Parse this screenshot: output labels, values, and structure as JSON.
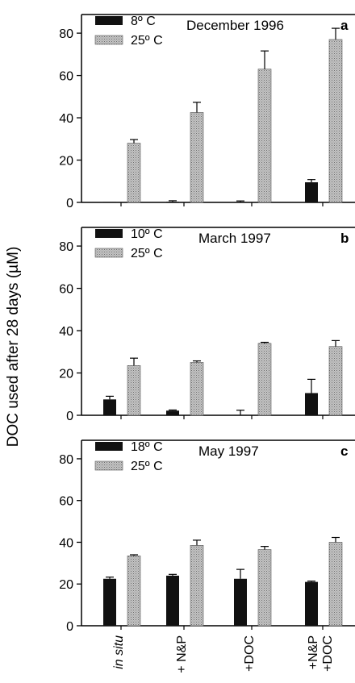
{
  "ylabel": "DOC used after 28 days (µM)",
  "categories": [
    "in situ",
    "+ N&P",
    "+DOC",
    "+N&P\n+DOC"
  ],
  "colors": {
    "low": "#111111",
    "high": "#b5b5b5",
    "high_stripe": "#6e6e6e",
    "axis": "#000000"
  },
  "chart_data": [
    {
      "type": "bar",
      "title": "December 1996",
      "panel_letter": "a",
      "categories": [
        "in situ",
        "+ N&P",
        "+DOC",
        "+N&P +DOC"
      ],
      "ylim": [
        0,
        85
      ],
      "yticks": [
        0,
        20,
        40,
        60,
        80
      ],
      "series": [
        {
          "name": "8º C",
          "values": [
            0.2,
            0.3,
            0.2,
            9.5
          ],
          "errors": [
            0,
            0.5,
            0.5,
            1.3
          ]
        },
        {
          "name": "25º C",
          "values": [
            28,
            42.5,
            63,
            77
          ],
          "errors": [
            1.7,
            4.8,
            8.6,
            5.3
          ]
        }
      ]
    },
    {
      "type": "bar",
      "title": "March 1997",
      "panel_letter": "b",
      "categories": [
        "in situ",
        "+ N&P",
        "+DOC",
        "+N&P +DOC"
      ],
      "ylim": [
        0,
        85
      ],
      "yticks": [
        0,
        20,
        40,
        60,
        80
      ],
      "series": [
        {
          "name": "10º C",
          "values": [
            7.5,
            2.2,
            0,
            10.5
          ],
          "errors": [
            1.5,
            0.3,
            2.4,
            6.5
          ]
        },
        {
          "name": "25º C",
          "values": [
            23.5,
            25,
            34,
            32.5
          ],
          "errors": [
            3.5,
            0.7,
            0.5,
            2.8
          ]
        }
      ]
    },
    {
      "type": "bar",
      "title": "May 1997",
      "panel_letter": "c",
      "categories": [
        "in situ",
        "+ N&P",
        "+DOC",
        "+N&P +DOC"
      ],
      "ylim": [
        0,
        85
      ],
      "yticks": [
        0,
        20,
        40,
        60,
        80
      ],
      "series": [
        {
          "name": "18º C",
          "values": [
            22.5,
            24,
            22.5,
            21
          ],
          "errors": [
            0.8,
            0.6,
            4.5,
            0.4
          ]
        },
        {
          "name": "25º C",
          "values": [
            33.5,
            38.5,
            36.5,
            40
          ],
          "errors": [
            0.5,
            2.5,
            1.5,
            2.3
          ]
        }
      ]
    }
  ]
}
